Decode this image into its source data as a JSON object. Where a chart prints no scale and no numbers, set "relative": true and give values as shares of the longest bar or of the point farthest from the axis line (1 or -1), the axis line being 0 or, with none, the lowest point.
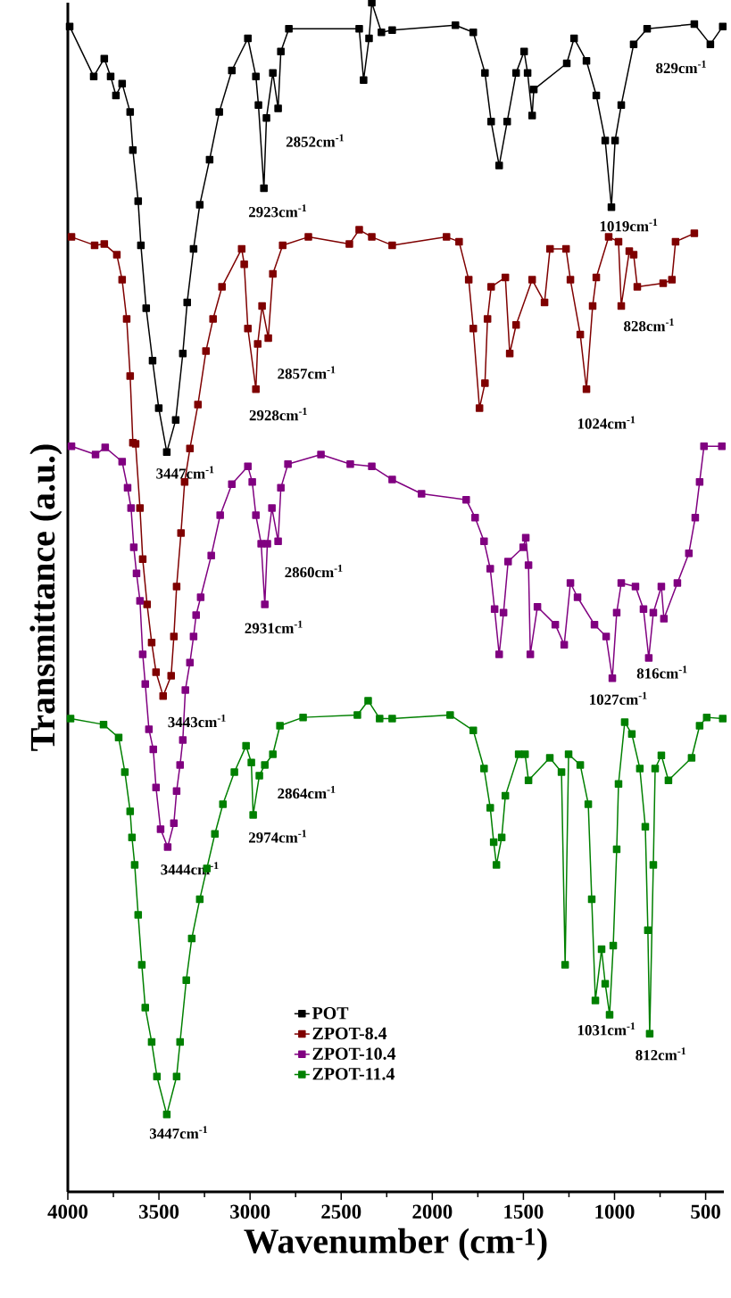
{
  "chart_data": {
    "type": "line",
    "relative": true,
    "xlabel": "Wavenumber (cm$^{-1}$)",
    "ylabel": "Transmittance (a.u.)",
    "xlim": [
      4000,
      400
    ],
    "xticks": [
      4000,
      3500,
      3000,
      2500,
      2000,
      1500,
      1000,
      500
    ],
    "legend": "bottom",
    "marker": "square",
    "line_style": "solid",
    "series": [
      {
        "name": "POT",
        "color": "#000000",
        "x": [
          3990,
          3858,
          3800,
          3765,
          3736,
          3702,
          3658,
          3643,
          3614,
          3599,
          3570,
          3535,
          3501,
          3457,
          3408,
          3369,
          3345,
          3310,
          3276,
          3222,
          3169,
          3100,
          3012,
          2968,
          2954,
          2924,
          2910,
          2875,
          2846,
          2831,
          2787,
          2401,
          2377,
          2347,
          2332,
          2279,
          2220,
          1873,
          1775,
          1711,
          1677,
          1633,
          1589,
          1540,
          1496,
          1477,
          1452,
          1443,
          1262,
          1222,
          1154,
          1100,
          1051,
          1017,
          997,
          963,
          895,
          821,
          562,
          474,
          406
        ],
        "values": [
          0.98,
          0.938,
          0.953,
          0.938,
          0.922,
          0.932,
          0.908,
          0.876,
          0.833,
          0.796,
          0.743,
          0.699,
          0.659,
          0.622,
          0.649,
          0.705,
          0.748,
          0.793,
          0.83,
          0.868,
          0.908,
          0.943,
          0.97,
          0.938,
          0.914,
          0.844,
          0.903,
          0.941,
          0.911,
          0.959,
          0.978,
          0.978,
          0.935,
          0.97,
          1,
          0.975,
          0.977,
          0.981,
          0.975,
          0.941,
          0.9,
          0.863,
          0.9,
          0.941,
          0.959,
          0.941,
          0.905,
          0.927,
          0.949,
          0.97,
          0.951,
          0.922,
          0.884,
          0.828,
          0.884,
          0.914,
          0.965,
          0.978,
          0.982,
          0.965,
          0.98
        ]
      },
      {
        "name": "ZPOT-8.4",
        "color": "#7f0000",
        "x": [
          3980,
          3853,
          3800,
          3731,
          3702,
          3677,
          3658,
          3643,
          3628,
          3604,
          3589,
          3565,
          3540,
          3516,
          3477,
          3433,
          3418,
          3403,
          3379,
          3359,
          3330,
          3286,
          3242,
          3203,
          3154,
          3046,
          3032,
          3012,
          2968,
          2958,
          2934,
          2900,
          2875,
          2821,
          2680,
          2455,
          2401,
          2332,
          2220,
          1922,
          1853,
          1800,
          1775,
          1741,
          1711,
          1697,
          1677,
          1599,
          1575,
          1540,
          1452,
          1384,
          1354,
          1266,
          1242,
          1188,
          1154,
          1120,
          1100,
          1032,
          978,
          963,
          919,
          895,
          875,
          733,
          685,
          665,
          562
        ],
        "values": [
          0.803,
          0.796,
          0.797,
          0.788,
          0.767,
          0.734,
          0.686,
          0.63,
          0.629,
          0.575,
          0.532,
          0.494,
          0.462,
          0.437,
          0.417,
          0.434,
          0.467,
          0.509,
          0.554,
          0.597,
          0.625,
          0.662,
          0.707,
          0.734,
          0.761,
          0.793,
          0.78,
          0.726,
          0.675,
          0.713,
          0.745,
          0.718,
          0.772,
          0.796,
          0.803,
          0.797,
          0.809,
          0.803,
          0.796,
          0.803,
          0.799,
          0.767,
          0.726,
          0.659,
          0.68,
          0.734,
          0.761,
          0.769,
          0.705,
          0.729,
          0.767,
          0.748,
          0.793,
          0.793,
          0.767,
          0.721,
          0.675,
          0.745,
          0.769,
          0.803,
          0.799,
          0.745,
          0.791,
          0.788,
          0.761,
          0.764,
          0.767,
          0.799,
          0.806
        ]
      },
      {
        "name": "ZPOT-10.4",
        "color": "#800080",
        "x": [
          3980,
          3848,
          3795,
          3702,
          3672,
          3653,
          3638,
          3623,
          3604,
          3589,
          3575,
          3555,
          3531,
          3516,
          3491,
          3452,
          3418,
          3403,
          3384,
          3369,
          3355,
          3330,
          3310,
          3296,
          3271,
          3213,
          3164,
          3100,
          3012,
          2988,
          2968,
          2939,
          2919,
          2905,
          2880,
          2846,
          2831,
          2792,
          2611,
          2450,
          2332,
          2220,
          2059,
          1814,
          1765,
          1716,
          1682,
          1658,
          1633,
          1609,
          1584,
          1501,
          1487,
          1472,
          1462,
          1423,
          1325,
          1276,
          1242,
          1203,
          1110,
          1046,
          1012,
          988,
          963,
          885,
          841,
          812,
          787,
          743,
          729,
          655,
          592,
          557,
          533,
          509,
          411
        ],
        "values": [
          0.627,
          0.62,
          0.626,
          0.614,
          0.592,
          0.575,
          0.542,
          0.52,
          0.497,
          0.452,
          0.427,
          0.389,
          0.372,
          0.34,
          0.305,
          0.29,
          0.31,
          0.337,
          0.359,
          0.38,
          0.422,
          0.445,
          0.467,
          0.485,
          0.5,
          0.535,
          0.569,
          0.595,
          0.61,
          0.597,
          0.569,
          0.545,
          0.494,
          0.545,
          0.575,
          0.547,
          0.592,
          0.612,
          0.62,
          0.612,
          0.61,
          0.599,
          0.587,
          0.582,
          0.567,
          0.547,
          0.524,
          0.49,
          0.452,
          0.487,
          0.53,
          0.542,
          0.55,
          0.527,
          0.452,
          0.492,
          0.477,
          0.46,
          0.512,
          0.5,
          0.477,
          0.467,
          0.432,
          0.487,
          0.512,
          0.509,
          0.49,
          0.449,
          0.487,
          0.509,
          0.482,
          0.512,
          0.537,
          0.567,
          0.597,
          0.627,
          0.627
        ]
      },
      {
        "name": "ZPOT-11.4",
        "color": "#008000",
        "x": [
          3985,
          3804,
          3721,
          3687,
          3658,
          3648,
          3633,
          3614,
          3594,
          3575,
          3540,
          3511,
          3457,
          3403,
          3384,
          3350,
          3320,
          3276,
          3237,
          3193,
          3149,
          3086,
          3022,
          2993,
          2983,
          2949,
          2919,
          2875,
          2836,
          2709,
          2411,
          2352,
          2289,
          2220,
          1902,
          1775,
          1716,
          1682,
          1663,
          1648,
          1619,
          1599,
          1526,
          1491,
          1472,
          1355,
          1291,
          1271,
          1252,
          1188,
          1144,
          1125,
          1105,
          1071,
          1051,
          1027,
          1007,
          988,
          978,
          944,
          905,
          861,
          831,
          817,
          807,
          787,
          777,
          743,
          704,
          577,
          533,
          494,
          406
        ],
        "values": [
          0.398,
          0.393,
          0.382,
          0.353,
          0.32,
          0.298,
          0.275,
          0.233,
          0.191,
          0.155,
          0.126,
          0.097,
          0.065,
          0.097,
          0.126,
          0.178,
          0.213,
          0.246,
          0.272,
          0.301,
          0.326,
          0.353,
          0.375,
          0.361,
          0.317,
          0.35,
          0.359,
          0.368,
          0.392,
          0.399,
          0.401,
          0.413,
          0.398,
          0.398,
          0.401,
          0.388,
          0.356,
          0.323,
          0.294,
          0.275,
          0.298,
          0.333,
          0.368,
          0.368,
          0.346,
          0.365,
          0.353,
          0.191,
          0.368,
          0.359,
          0.326,
          0.246,
          0.161,
          0.204,
          0.175,
          0.149,
          0.207,
          0.288,
          0.343,
          0.395,
          0.385,
          0.356,
          0.307,
          0.22,
          0.133,
          0.275,
          0.356,
          0.367,
          0.346,
          0.365,
          0.392,
          0.399,
          0.398
        ]
      }
    ],
    "annotations": [
      "2852cm$^{-1}$",
      "2923cm$^{-1}$",
      "829cm$^{-1}$",
      "1019cm$^{-1}$",
      "2857cm$^{-1}$",
      "2928cm$^{-1}$",
      "828cm$^{-1}$",
      "1024cm$^{-1}$",
      "3447cm$^{-1}$",
      "2860cm$^{-1}$",
      "2931cm$^{-1}$",
      "816cm$^{-1}$",
      "1027cm$^{-1}$",
      "3443cm$^{-1}$",
      "2864cm$^{-1}$",
      "2974cm$^{-1}$",
      "3444cm$^{-1}$",
      "3447cm$^{-1}$",
      "1031cm$^{-1}$",
      "812cm$^{-1}$"
    ]
  }
}
